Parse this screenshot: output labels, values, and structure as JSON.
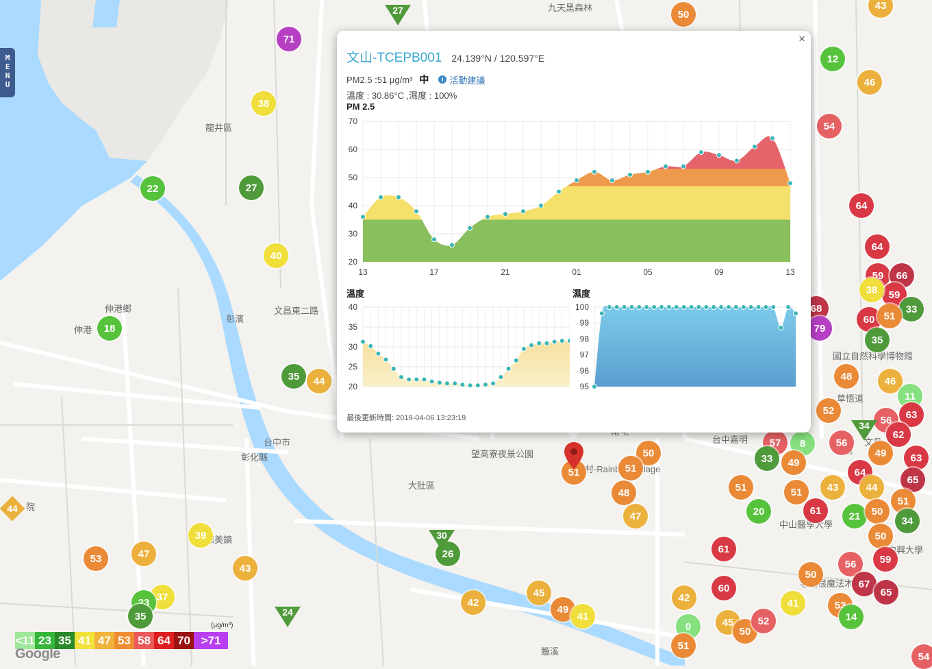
{
  "menu": {
    "label": "MENU",
    "letters": [
      "M",
      "E",
      "N",
      "U"
    ]
  },
  "map": {
    "places": [
      {
        "name": "九天黑森林",
        "x": 800,
        "y": 16
      },
      {
        "name": "龍井區",
        "x": 300,
        "y": 191
      },
      {
        "name": "伸港鄉",
        "x": 153,
        "y": 455
      },
      {
        "name": "伸港",
        "x": 108,
        "y": 486
      },
      {
        "name": "大肚區",
        "x": 596,
        "y": 713
      },
      {
        "name": "望高寮夜景公園",
        "x": 688,
        "y": 667
      },
      {
        "name": "彩虹村-Rainbow Village",
        "x": 828,
        "y": 689
      },
      {
        "name": "和美鎮",
        "x": 300,
        "y": 792
      },
      {
        "name": "國立自然科學博物館",
        "x": 1216,
        "y": 524
      },
      {
        "name": "草悟道",
        "x": 1222,
        "y": 586
      },
      {
        "name": "台中市",
        "x": 1290,
        "y": 629
      },
      {
        "name": "台中嘉明",
        "x": 1040,
        "y": 646
      },
      {
        "name": "西區",
        "x": 1220,
        "y": 662
      },
      {
        "name": "中山醫學大學",
        "x": 1138,
        "y": 770
      },
      {
        "name": "老樹根魔法木工坊",
        "x": 1168,
        "y": 856
      },
      {
        "name": "中興大學",
        "x": 1296,
        "y": 807
      },
      {
        "name": "南屯",
        "x": 892,
        "y": 634
      },
      {
        "name": "院",
        "x": 38,
        "y": 744
      },
      {
        "name": "文昌",
        "x": 1262,
        "y": 650
      },
      {
        "name": "台中市",
        "x": 385,
        "y": 650
      },
      {
        "name": "彰化縣",
        "x": 352,
        "y": 672
      },
      {
        "name": "彰濱",
        "x": 330,
        "y": 470
      },
      {
        "name": "籬溪",
        "x": 790,
        "y": 955
      },
      {
        "name": "文昌東二路",
        "x": 400,
        "y": 458
      }
    ],
    "markers": [
      {
        "v": "71",
        "c": "#b63fc4",
        "x": 422,
        "y": 57
      },
      {
        "v": "38",
        "c": "#f0de3a",
        "x": 385,
        "y": 151
      },
      {
        "v": "22",
        "c": "#57c33d",
        "x": 223,
        "y": 275
      },
      {
        "v": "27",
        "c": "#4f9a3a",
        "x": 367,
        "y": 274
      },
      {
        "v": "40",
        "c": "#f0de3a",
        "x": 403,
        "y": 373
      },
      {
        "v": "18",
        "c": "#57c33d",
        "x": 160,
        "y": 479
      },
      {
        "v": "35",
        "c": "#4f9a3a",
        "x": 429,
        "y": 549
      },
      {
        "v": "44",
        "c": "#ecb13c",
        "x": 466,
        "y": 556
      },
      {
        "v": "50",
        "c": "#ea8a37",
        "x": 998,
        "y": 21
      },
      {
        "v": "43",
        "c": "#ecb13c",
        "x": 1286,
        "y": 8
      },
      {
        "v": "12",
        "c": "#57c33d",
        "x": 1216,
        "y": 86
      },
      {
        "v": "46",
        "c": "#ecb13c",
        "x": 1270,
        "y": 120
      },
      {
        "v": "54",
        "c": "#e56163",
        "x": 1211,
        "y": 184
      },
      {
        "v": "64",
        "c": "#d93945",
        "x": 1258,
        "y": 300
      },
      {
        "v": "64",
        "c": "#d93945",
        "x": 1281,
        "y": 360
      },
      {
        "v": "59",
        "c": "#d93945",
        "x": 1282,
        "y": 402
      },
      {
        "v": "66",
        "c": "#bf3548",
        "x": 1317,
        "y": 402
      },
      {
        "v": "59",
        "c": "#d93945",
        "x": 1306,
        "y": 430
      },
      {
        "v": "38",
        "c": "#f0de3a",
        "x": 1273,
        "y": 423
      },
      {
        "v": "68",
        "c": "#bf3548",
        "x": 1192,
        "y": 450
      },
      {
        "v": "33",
        "c": "#4f9a3a",
        "x": 1331,
        "y": 451
      },
      {
        "v": "60",
        "c": "#d93945",
        "x": 1269,
        "y": 466
      },
      {
        "v": "51",
        "c": "#ea8a37",
        "x": 1299,
        "y": 461
      },
      {
        "v": "79",
        "c": "#b63fc4",
        "x": 1197,
        "y": 479
      },
      {
        "v": "35",
        "c": "#4f9a3a",
        "x": 1281,
        "y": 496
      },
      {
        "v": "48",
        "c": "#ea8a37",
        "x": 1236,
        "y": 549
      },
      {
        "v": "46",
        "c": "#ecb13c",
        "x": 1300,
        "y": 556
      },
      {
        "v": "11",
        "c": "#86e07f",
        "x": 1329,
        "y": 578
      },
      {
        "v": "52",
        "c": "#ea8a37",
        "x": 1210,
        "y": 599
      },
      {
        "v": "56",
        "c": "#e56163",
        "x": 1294,
        "y": 613
      },
      {
        "v": "63",
        "c": "#d93945",
        "x": 1331,
        "y": 605
      },
      {
        "v": "62",
        "c": "#d93945",
        "x": 1312,
        "y": 634
      },
      {
        "v": "56",
        "c": "#e56163",
        "x": 1229,
        "y": 646
      },
      {
        "v": "49",
        "c": "#ea8a37",
        "x": 1286,
        "y": 661
      },
      {
        "v": "8",
        "c": "#86e07f",
        "x": 1172,
        "y": 647
      },
      {
        "v": "57",
        "c": "#e56163",
        "x": 1132,
        "y": 646
      },
      {
        "v": "33",
        "c": "#4f9a3a",
        "x": 1120,
        "y": 669
      },
      {
        "v": "49",
        "c": "#ea8a37",
        "x": 1159,
        "y": 675
      },
      {
        "v": "63",
        "c": "#d93945",
        "x": 1338,
        "y": 668
      },
      {
        "v": "64",
        "c": "#d93945",
        "x": 1256,
        "y": 689
      },
      {
        "v": "65",
        "c": "#bf3548",
        "x": 1333,
        "y": 700
      },
      {
        "v": "51",
        "c": "#ea8a37",
        "x": 1082,
        "y": 711
      },
      {
        "v": "51",
        "c": "#ea8a37",
        "x": 1163,
        "y": 718
      },
      {
        "v": "43",
        "c": "#ecb13c",
        "x": 1216,
        "y": 711
      },
      {
        "v": "44",
        "c": "#ecb13c",
        "x": 1273,
        "y": 711
      },
      {
        "v": "51",
        "c": "#ea8a37",
        "x": 1319,
        "y": 731
      },
      {
        "v": "20",
        "c": "#57c33d",
        "x": 1108,
        "y": 746
      },
      {
        "v": "61",
        "c": "#d93945",
        "x": 1191,
        "y": 745
      },
      {
        "v": "21",
        "c": "#57c33d",
        "x": 1248,
        "y": 753
      },
      {
        "v": "50",
        "c": "#ea8a37",
        "x": 1281,
        "y": 746
      },
      {
        "v": "34",
        "c": "#4f9a3a",
        "x": 1325,
        "y": 760
      },
      {
        "v": "50",
        "c": "#ea8a37",
        "x": 1286,
        "y": 782
      },
      {
        "v": "61",
        "c": "#d93945",
        "x": 1057,
        "y": 801
      },
      {
        "v": "56",
        "c": "#e56163",
        "x": 1242,
        "y": 823
      },
      {
        "v": "59",
        "c": "#d93945",
        "x": 1293,
        "y": 816
      },
      {
        "v": "50",
        "c": "#ea8a37",
        "x": 1184,
        "y": 838
      },
      {
        "v": "67",
        "c": "#bf3548",
        "x": 1262,
        "y": 852
      },
      {
        "v": "60",
        "c": "#d93945",
        "x": 1057,
        "y": 858
      },
      {
        "v": "65",
        "c": "#bf3548",
        "x": 1294,
        "y": 864
      },
      {
        "v": "53",
        "c": "#ea8a37",
        "x": 1227,
        "y": 883
      },
      {
        "v": "41",
        "c": "#f0de3a",
        "x": 1158,
        "y": 880
      },
      {
        "v": "14",
        "c": "#57c33d",
        "x": 1243,
        "y": 900
      },
      {
        "v": "45",
        "c": "#ecb13c",
        "x": 1063,
        "y": 908
      },
      {
        "v": "50",
        "c": "#ea8a37",
        "x": 1088,
        "y": 921
      },
      {
        "v": "52",
        "c": "#e56163",
        "x": 1115,
        "y": 906
      },
      {
        "v": "0",
        "c": "#86e07f",
        "x": 1005,
        "y": 914
      },
      {
        "v": "51",
        "c": "#ea8a37",
        "x": 998,
        "y": 942
      },
      {
        "v": "54",
        "c": "#e56163",
        "x": 1349,
        "y": 958
      },
      {
        "v": "50",
        "c": "#ea8a37",
        "x": 947,
        "y": 661
      },
      {
        "v": "51",
        "c": "#ea8a37",
        "x": 921,
        "y": 683
      },
      {
        "v": "48",
        "c": "#ea8a37",
        "x": 911,
        "y": 719
      },
      {
        "v": "47",
        "c": "#ecb13c",
        "x": 928,
        "y": 753
      },
      {
        "v": "42",
        "c": "#ecb13c",
        "x": 999,
        "y": 872
      },
      {
        "v": "45",
        "c": "#ecb13c",
        "x": 787,
        "y": 865
      },
      {
        "v": "49",
        "c": "#ea8a37",
        "x": 822,
        "y": 889
      },
      {
        "v": "41",
        "c": "#f0de3a",
        "x": 851,
        "y": 899
      },
      {
        "v": "42",
        "c": "#ecb13c",
        "x": 691,
        "y": 879
      },
      {
        "v": "26",
        "c": "#4f9a3a",
        "x": 654,
        "y": 808
      },
      {
        "v": "39",
        "c": "#f0de3a",
        "x": 293,
        "y": 781
      },
      {
        "v": "47",
        "c": "#ecb13c",
        "x": 210,
        "y": 808
      },
      {
        "v": "43",
        "c": "#ecb13c",
        "x": 358,
        "y": 829
      },
      {
        "v": "53",
        "c": "#ea8a37",
        "x": 140,
        "y": 815
      },
      {
        "v": "37",
        "c": "#f0de3a",
        "x": 237,
        "y": 871
      },
      {
        "v": "23",
        "c": "#57c33d",
        "x": 210,
        "y": 879
      },
      {
        "v": "35",
        "c": "#4f9a3a",
        "x": 205,
        "y": 899
      },
      {
        "v": "51",
        "c": "#ea8a37",
        "x": 838,
        "y": 689
      }
    ],
    "triangles": [
      {
        "v": "27",
        "c": "#4f9a3a",
        "x": 581,
        "y": 21
      },
      {
        "v": "30",
        "c": "#4f9a3a",
        "x": 645,
        "y": 787
      },
      {
        "v": "24",
        "c": "#4f9a3a",
        "x": 420,
        "y": 899
      },
      {
        "v": "34",
        "c": "#4f9a3a",
        "x": 1262,
        "y": 627
      }
    ],
    "diamonds": [
      {
        "v": "44",
        "c": "#ecb13c",
        "x": 18,
        "y": 742
      }
    ]
  },
  "popup": {
    "station_name": "文山-TCEPB001",
    "coords": "24.139°N / 120.597°E",
    "pm_text": "PM2.5 :51 μg/m³",
    "level": "中",
    "advice": "活動建議",
    "meta": "溫度 : 30.86°C ,濕度 : 100%",
    "pm_chart_label": "PM 2.5",
    "temp_chart_label": "溫度",
    "humid_chart_label": "濕度",
    "updated": "最後更新時間: 2019-04-06 13:23:19",
    "close_label": "×"
  },
  "chart_data": [
    {
      "type": "area",
      "title": "PM 2.5",
      "x": [
        "13",
        "14",
        "15",
        "16",
        "17",
        "18",
        "19",
        "20",
        "21",
        "22",
        "23",
        "24",
        "01",
        "02",
        "03",
        "04",
        "05",
        "06",
        "07",
        "08",
        "09",
        "10",
        "11",
        "12",
        "13"
      ],
      "xticks": [
        "13",
        "17",
        "21",
        "01",
        "05",
        "09",
        "13"
      ],
      "series": [
        {
          "values": [
            36,
            43,
            43,
            38,
            28,
            26,
            32,
            36,
            37,
            38,
            40,
            45,
            49,
            52,
            49,
            51,
            52,
            54,
            54,
            59,
            58,
            56,
            61,
            64,
            48
          ]
        }
      ],
      "ylim": [
        20,
        70
      ],
      "yticks": [
        20,
        30,
        40,
        50,
        60,
        70
      ],
      "bands": [
        {
          "max": 35,
          "color": "#8abf5e"
        },
        {
          "max": 47,
          "color": "#f6e06c"
        },
        {
          "max": 53,
          "color": "#ed9a4c"
        },
        {
          "max": 70,
          "color": "#e5636a"
        }
      ],
      "grid": true
    },
    {
      "type": "area",
      "title": "溫度",
      "x": [
        "1",
        "2",
        "3",
        "4",
        "5",
        "6",
        "7",
        "8",
        "9",
        "10",
        "11",
        "12",
        "13",
        "14",
        "15",
        "16",
        "17",
        "18",
        "19",
        "20",
        "21",
        "22",
        "23",
        "24",
        "25",
        "26",
        "27",
        "28"
      ],
      "series": [
        {
          "values": [
            31.3,
            30.2,
            28.3,
            26.8,
            24.5,
            22.4,
            21.8,
            21.8,
            21.8,
            21.3,
            21.0,
            20.8,
            20.8,
            20.5,
            20.3,
            20.3,
            20.5,
            20.8,
            22.4,
            24.5,
            26.6,
            29.5,
            30.4,
            30.9,
            30.9,
            31.3,
            31.5,
            31.5
          ]
        }
      ],
      "ylim": [
        20,
        40
      ],
      "yticks": [
        20,
        25,
        30,
        35,
        40
      ],
      "grid": true
    },
    {
      "type": "area",
      "title": "濕度",
      "x": [
        "1",
        "2",
        "3",
        "4",
        "5",
        "6",
        "7",
        "8",
        "9",
        "10",
        "11",
        "12",
        "13",
        "14",
        "15",
        "16",
        "17",
        "18",
        "19",
        "20",
        "21",
        "22",
        "23",
        "24",
        "25",
        "26",
        "27",
        "28"
      ],
      "series": [
        {
          "values": [
            95,
            99.6,
            100,
            100,
            100,
            100,
            100,
            100,
            100,
            100,
            100,
            100,
            100,
            100,
            100,
            100,
            100,
            100,
            100,
            100,
            100,
            100,
            100,
            100,
            100,
            98.7,
            100,
            99.6
          ]
        }
      ],
      "ylim": [
        95,
        100
      ],
      "yticks": [
        95,
        96,
        97,
        98,
        99,
        100
      ],
      "grid": true
    }
  ],
  "legend": {
    "unit": "(μg/m³)",
    "cells": [
      {
        "label": "<11",
        "c": "#9ee79a"
      },
      {
        "label": "23",
        "c": "#35b63a"
      },
      {
        "label": "35",
        "c": "#2a8a2a"
      },
      {
        "label": "41",
        "c": "#f1e23c"
      },
      {
        "label": "47",
        "c": "#f0b33b"
      },
      {
        "label": "53",
        "c": "#ef8c30"
      },
      {
        "label": "58",
        "c": "#ea5a5a"
      },
      {
        "label": "64",
        "c": "#dd1f1f"
      },
      {
        "label": "70",
        "c": "#9b1212"
      },
      {
        "label": ">71",
        "c": "#b93ef2"
      }
    ]
  },
  "attribution": "Google"
}
